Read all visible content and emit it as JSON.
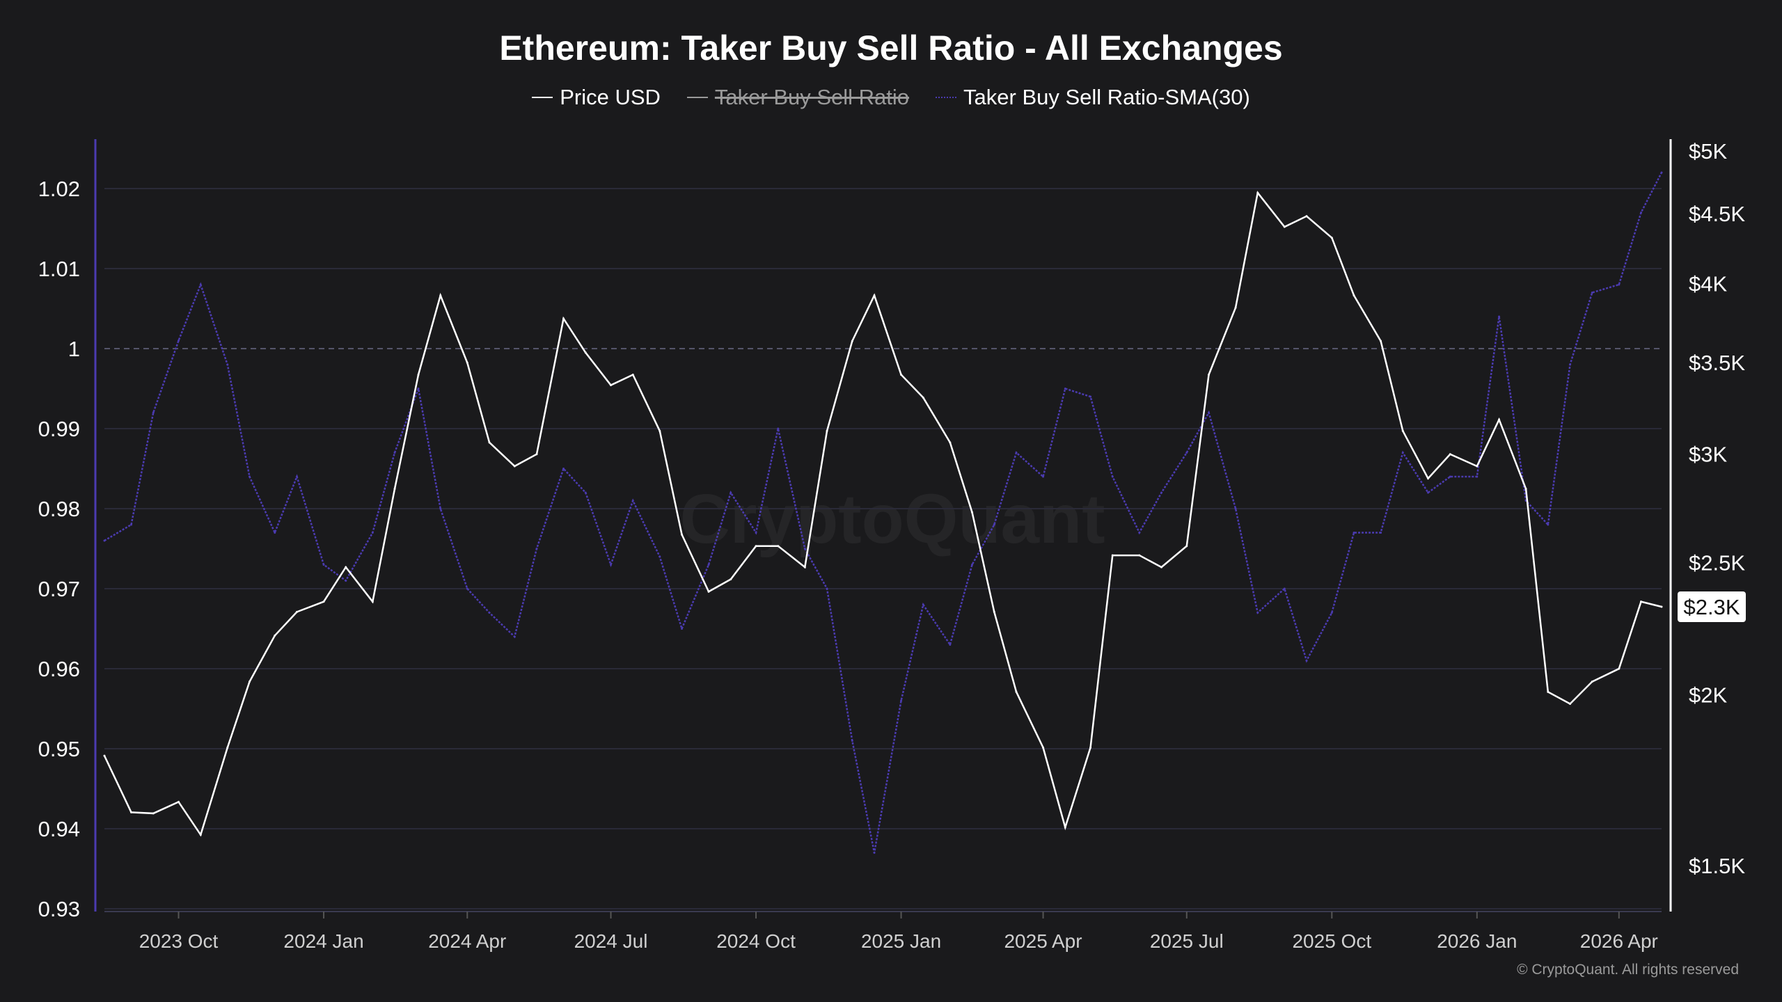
{
  "chart_data": {
    "type": "line",
    "title": "Ethereum: Taker Buy Sell Ratio - All Exchanges",
    "legend": [
      {
        "name": "Price USD",
        "color": "#ffffff",
        "hidden": false
      },
      {
        "name": "Taker Buy Sell Ratio",
        "color": "#9a9a9a",
        "hidden": true
      },
      {
        "name": "Taker Buy Sell Ratio-SMA(30)",
        "color": "#4b3bb0",
        "hidden": false
      }
    ],
    "legend_placement": "top-center",
    "x_ticks": [
      "2023 Oct",
      "2024 Jan",
      "2024 Apr",
      "2024 Jul",
      "2024 Oct",
      "2025 Jan",
      "2025 Apr",
      "2025 Jul",
      "2025 Oct",
      "2026 Jan",
      "2026 Apr"
    ],
    "x_tick_dates": [
      "2023-10-01",
      "2024-01-01",
      "2024-04-01",
      "2024-07-01",
      "2024-10-01",
      "2025-01-01",
      "2025-04-01",
      "2025-07-01",
      "2025-10-01",
      "2026-01-01",
      "2026-04-01"
    ],
    "xlim": [
      "2023-08-15",
      "2026-04-28"
    ],
    "left_axis": {
      "ticks": [
        "1.02",
        "1.01",
        "1",
        "0.99",
        "0.98",
        "0.97",
        "0.96",
        "0.95",
        "0.94",
        "0.93"
      ],
      "values": [
        1.02,
        1.01,
        1.0,
        0.99,
        0.98,
        0.97,
        0.96,
        0.95,
        0.94,
        0.93
      ],
      "ylim": [
        0.93,
        1.02
      ],
      "reference_line": 1.0
    },
    "right_axis": {
      "scale": "log",
      "ticks": [
        "$5K",
        "$4.5K",
        "$4K",
        "$3.5K",
        "$3K",
        "$2.5K",
        "$2K",
        "$1.5K"
      ],
      "values": [
        5000,
        4500,
        4000,
        3500,
        3000,
        2500,
        2000,
        1500
      ],
      "ylim": [
        1500,
        5000
      ],
      "current_label": "$2.3K",
      "current_value": 2320
    },
    "grid": true,
    "dates": [
      "2023-08-15",
      "2023-09-01",
      "2023-09-15",
      "2023-10-01",
      "2023-10-15",
      "2023-11-01",
      "2023-11-15",
      "2023-12-01",
      "2023-12-15",
      "2024-01-01",
      "2024-01-15",
      "2024-02-01",
      "2024-02-15",
      "2024-03-01",
      "2024-03-15",
      "2024-04-01",
      "2024-04-15",
      "2024-05-01",
      "2024-05-15",
      "2024-06-01",
      "2024-06-15",
      "2024-07-01",
      "2024-07-15",
      "2024-08-01",
      "2024-08-15",
      "2024-09-01",
      "2024-09-15",
      "2024-10-01",
      "2024-10-15",
      "2024-11-01",
      "2024-11-15",
      "2024-12-01",
      "2024-12-15",
      "2025-01-01",
      "2025-01-15",
      "2025-02-01",
      "2025-02-15",
      "2025-03-01",
      "2025-03-15",
      "2025-04-01",
      "2025-04-15",
      "2025-05-01",
      "2025-05-15",
      "2025-06-01",
      "2025-06-15",
      "2025-07-01",
      "2025-07-15",
      "2025-08-01",
      "2025-08-15",
      "2025-09-01",
      "2025-09-15",
      "2025-10-01",
      "2025-10-15",
      "2025-11-01",
      "2025-11-15",
      "2025-12-01",
      "2025-12-15",
      "2026-01-01",
      "2026-01-15",
      "2026-02-01",
      "2026-02-15",
      "2026-03-01",
      "2026-03-15",
      "2026-04-01",
      "2026-04-15",
      "2026-04-28"
    ],
    "series": [
      {
        "name": "Price USD",
        "axis": "right",
        "values": [
          1805,
          1641,
          1638,
          1670,
          1580,
          1830,
          2045,
          2210,
          2300,
          2340,
          2480,
          2340,
          2830,
          3430,
          3920,
          3500,
          3060,
          2940,
          3000,
          3770,
          3560,
          3370,
          3430,
          3120,
          2620,
          2380,
          2430,
          2570,
          2570,
          2480,
          3120,
          3630,
          3920,
          3430,
          3300,
          3060,
          2720,
          2300,
          2010,
          1830,
          1600,
          1830,
          2530,
          2530,
          2480,
          2570,
          3430,
          3840,
          4660,
          4400,
          4480,
          4320,
          3920,
          3630,
          3120,
          2880,
          3000,
          2940,
          3180,
          2830,
          2010,
          1970,
          2045,
          2090,
          2340,
          2320
        ]
      },
      {
        "name": "Taker Buy Sell Ratio-SMA(30)",
        "axis": "left",
        "values": [
          0.976,
          0.978,
          0.992,
          1.001,
          1.008,
          0.998,
          0.984,
          0.977,
          0.984,
          0.973,
          0.971,
          0.977,
          0.987,
          0.995,
          0.98,
          0.97,
          0.967,
          0.964,
          0.975,
          0.985,
          0.982,
          0.973,
          0.981,
          0.974,
          0.965,
          0.973,
          0.982,
          0.977,
          0.99,
          0.975,
          0.97,
          0.951,
          0.937,
          0.956,
          0.968,
          0.963,
          0.973,
          0.978,
          0.987,
          0.984,
          0.995,
          0.994,
          0.984,
          0.977,
          0.982,
          0.987,
          0.992,
          0.98,
          0.967,
          0.97,
          0.961,
          0.967,
          0.977,
          0.977,
          0.987,
          0.982,
          0.984,
          0.984,
          1.004,
          0.981,
          0.978,
          0.998,
          1.007,
          1.008,
          1.017,
          1.022
        ]
      }
    ]
  },
  "watermark": "CryptoQuant",
  "copyright": "© CryptoQuant. All rights reserved"
}
